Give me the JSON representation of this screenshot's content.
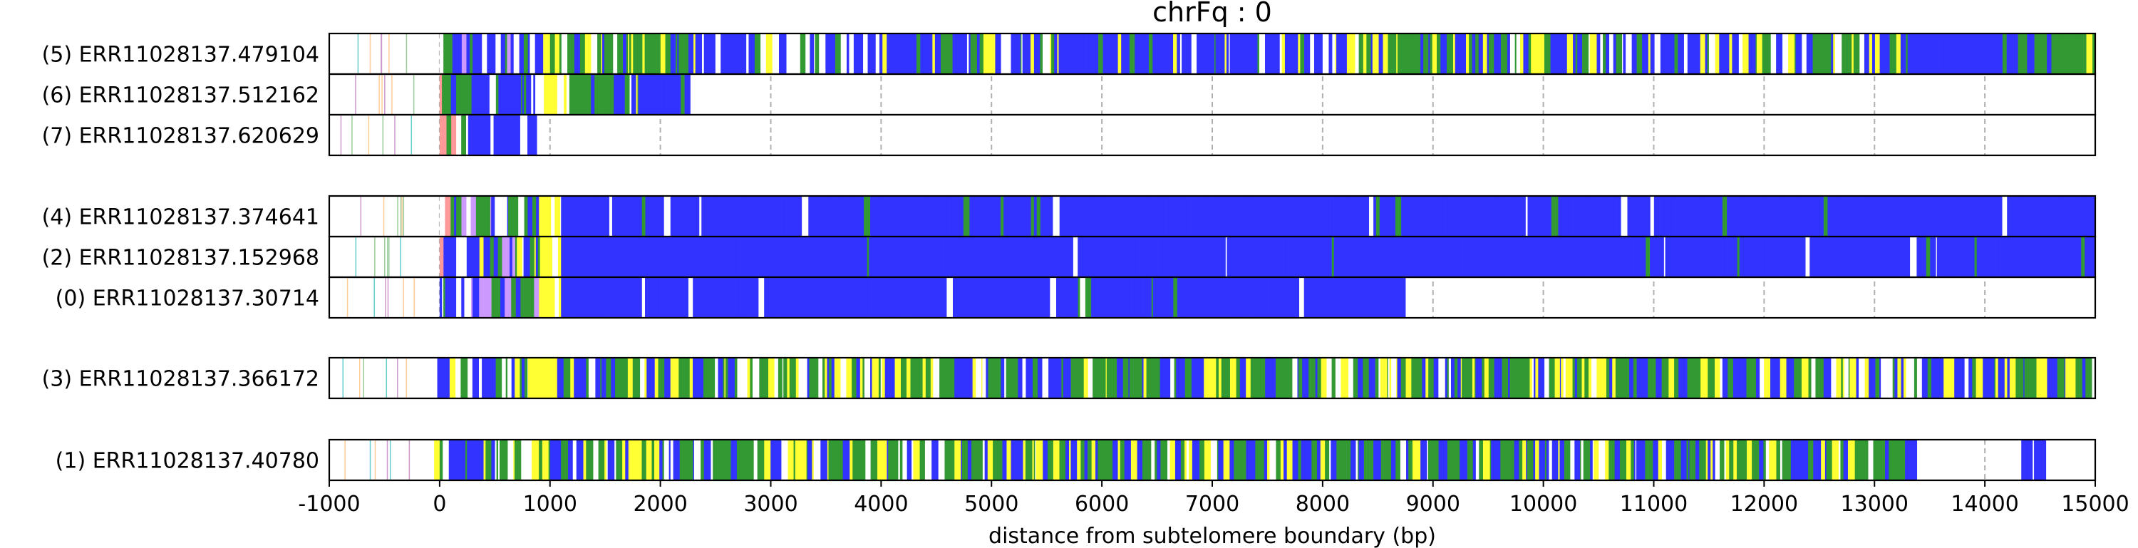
{
  "chart_data": {
    "type": "bar",
    "title": "chrFq : 0",
    "xlabel": "distance from subtelomere boundary (bp)",
    "ylabel": "",
    "xlim": [
      -1000,
      15000
    ],
    "xticks": [
      -1000,
      0,
      1000,
      2000,
      3000,
      4000,
      5000,
      6000,
      7000,
      8000,
      9000,
      10000,
      11000,
      12000,
      13000,
      14000,
      15000
    ],
    "grid": "vertical dashed",
    "colors": {
      "blue": "#3333ff",
      "green": "#339933",
      "yellow": "#ffff33",
      "white": "#ffffff",
      "border": "#000000"
    },
    "groups": [
      {
        "reads": [
          {
            "label": "(5) ERR11028137.479104",
            "start": 0,
            "end": 15000,
            "pattern": "mixed_blue_end"
          },
          {
            "label": "(6) ERR11028137.512162",
            "start": 0,
            "end": 2270,
            "pattern": "yellow_green_blue"
          },
          {
            "label": "(7) ERR11028137.620629",
            "start": 0,
            "end": 880,
            "pattern": "mixed_short"
          }
        ]
      },
      {
        "reads": [
          {
            "label": "(4) ERR11028137.374641",
            "start": 0,
            "end": 15000,
            "pattern": "mostly_blue"
          },
          {
            "label": "(2) ERR11028137.152968",
            "start": 0,
            "end": 15000,
            "pattern": "mostly_blue"
          },
          {
            "label": "(0) ERR11028137.30714",
            "start": 0,
            "end": 8750,
            "pattern": "mostly_blue"
          }
        ]
      },
      {
        "reads": [
          {
            "label": "(3) ERR11028137.366172",
            "start": -50,
            "end": 15000,
            "pattern": "green_yellow_dense"
          }
        ]
      },
      {
        "reads": [
          {
            "label": "(1) ERR11028137.40780",
            "start": -50,
            "end": 13450,
            "pattern": "green_yellow_dense",
            "extra_segments": [
              [
                14330,
                14580
              ]
            ]
          }
        ]
      }
    ]
  }
}
